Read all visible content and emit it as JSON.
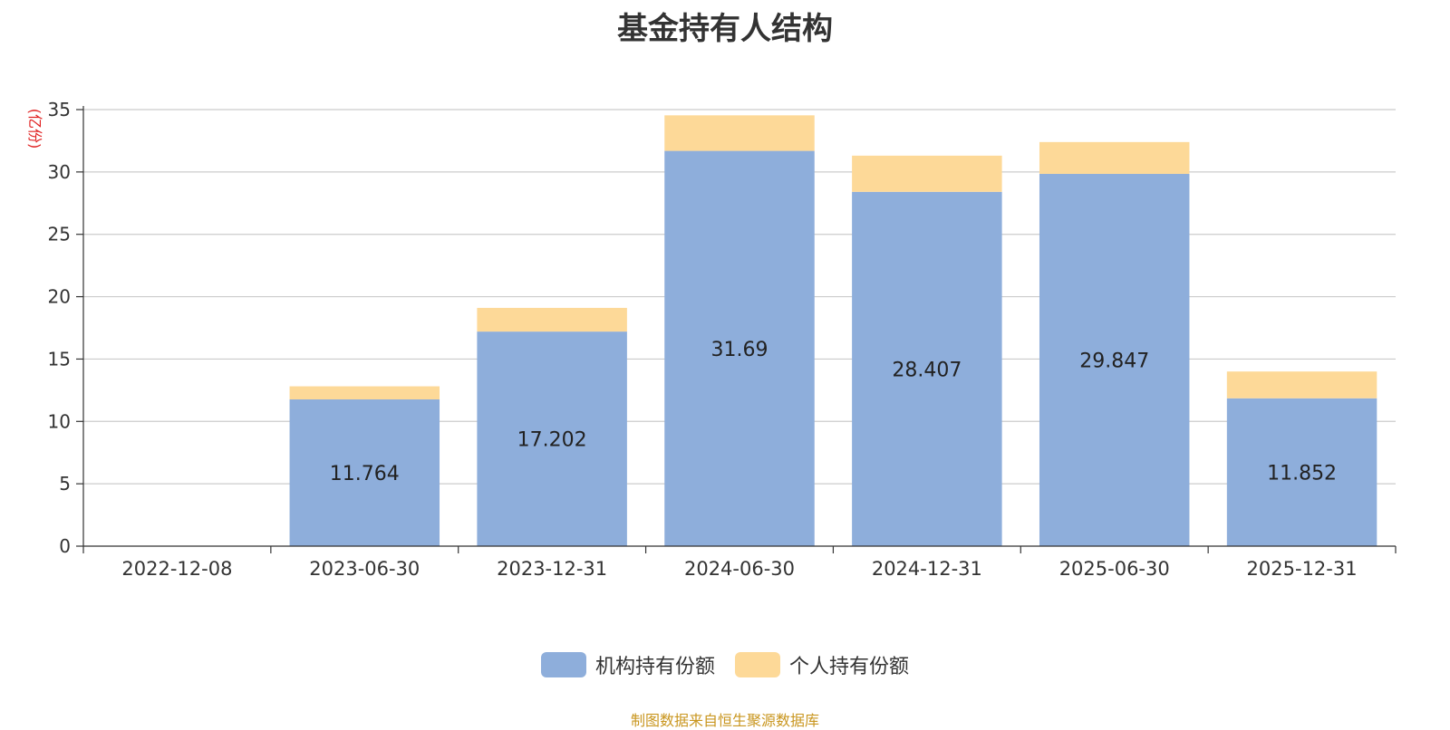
{
  "chart_data": {
    "type": "bar",
    "stacked": true,
    "title": "基金持有人结构",
    "unit_label": "(亿份)",
    "categories": [
      "2022-12-08",
      "2023-06-30",
      "2023-12-31",
      "2024-06-30",
      "2024-12-31",
      "2025-06-30",
      "2025-12-31"
    ],
    "series": [
      {
        "name": "机构持有份额",
        "color": "#8eaedb",
        "values": [
          0,
          11.764,
          17.202,
          31.69,
          28.407,
          29.847,
          11.852
        ],
        "labels": [
          "",
          "11.764",
          "17.202",
          "31.69",
          "28.407",
          "29.847",
          "11.852"
        ]
      },
      {
        "name": "个人持有份额",
        "color": "#fdd998",
        "values": [
          0,
          1.05,
          1.9,
          2.85,
          2.9,
          2.55,
          2.15
        ]
      }
    ],
    "ylim": [
      0,
      35
    ],
    "yticks": [
      0,
      5,
      10,
      15,
      20,
      25,
      30,
      35
    ],
    "grid": true,
    "legend_position": "bottom"
  },
  "source_note": "制图数据来自恒生聚源数据库"
}
